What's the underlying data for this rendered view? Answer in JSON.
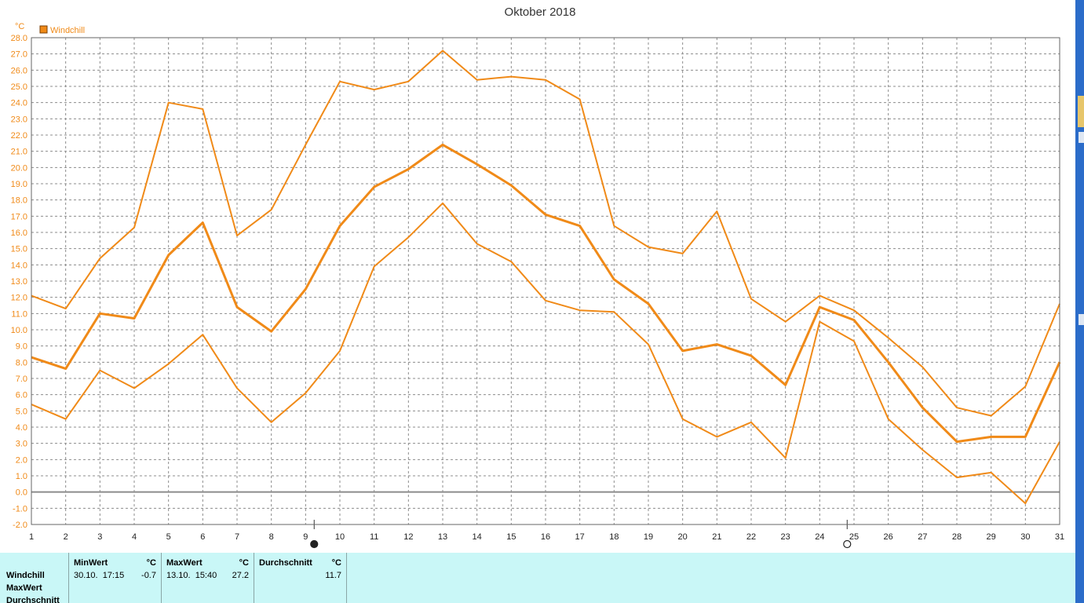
{
  "chart_data": {
    "type": "line",
    "title": "Oktober 2018",
    "ylabel": "°C",
    "legend": "Windchill",
    "legend_position": "top-left",
    "grid": true,
    "ylim": [
      -2,
      28
    ],
    "yticks": [
      "28.0",
      "27.0",
      "26.0",
      "25.0",
      "24.0",
      "23.0",
      "22.0",
      "21.0",
      "20.0",
      "19.0",
      "18.0",
      "17.0",
      "16.0",
      "15.0",
      "14.0",
      "13.0",
      "12.0",
      "11.0",
      "10.0",
      "9.0",
      "8.0",
      "7.0",
      "6.0",
      "5.0",
      "4.0",
      "3.0",
      "2.0",
      "1.0",
      "0.0",
      "-1.0",
      "-2.0"
    ],
    "x": [
      "1",
      "2",
      "3",
      "4",
      "5",
      "6",
      "7",
      "8",
      "9",
      "10",
      "11",
      "12",
      "13",
      "14",
      "15",
      "16",
      "17",
      "18",
      "19",
      "20",
      "21",
      "22",
      "23",
      "24",
      "25",
      "26",
      "27",
      "28",
      "29",
      "30",
      "31"
    ],
    "series": [
      {
        "values": [
          12.1,
          11.3,
          14.4,
          16.3,
          24.0,
          23.6,
          15.8,
          17.4,
          21.4,
          25.3,
          24.8,
          25.3,
          27.2,
          25.4,
          25.6,
          25.4,
          24.2,
          16.4,
          15.1,
          14.7,
          17.3,
          11.9,
          10.5,
          12.1,
          11.2,
          9.5,
          7.7,
          5.2,
          4.7,
          6.5,
          11.6
        ]
      },
      {
        "values": [
          8.3,
          7.6,
          11.0,
          10.7,
          14.6,
          16.6,
          11.4,
          9.9,
          12.5,
          16.4,
          18.8,
          19.9,
          21.4,
          20.2,
          18.9,
          17.1,
          16.4,
          13.1,
          11.6,
          8.7,
          9.1,
          8.4,
          6.6,
          11.4,
          10.6,
          8.0,
          5.2,
          3.1,
          3.4,
          3.4,
          8.0
        ]
      },
      {
        "values": [
          5.4,
          4.5,
          7.5,
          6.4,
          7.9,
          9.7,
          6.4,
          4.3,
          6.1,
          8.7,
          13.9,
          15.7,
          17.8,
          15.3,
          14.2,
          11.8,
          11.2,
          11.1,
          9.1,
          4.5,
          3.4,
          4.3,
          2.1,
          10.5,
          9.3,
          4.5,
          2.6,
          0.9,
          1.2,
          -0.7,
          3.1
        ]
      }
    ],
    "moon_phases": [
      {
        "x": 9.25,
        "phase": "full"
      },
      {
        "x": 24.8,
        "phase": "new"
      }
    ]
  },
  "colors": {
    "line": "#f08a18",
    "axis_text": "#f08a18",
    "grid": "#8c8c8c",
    "zero_line": "#8c8c8c",
    "stats_bg": "#c9f7f7"
  },
  "stats": {
    "row_labels": [
      "Windchill",
      "MaxWert",
      "Durchschnitt"
    ],
    "columns": [
      {
        "header": "MinWert",
        "unit": "°C",
        "when": "30.10.  17:15",
        "value": "-0.7"
      },
      {
        "header": "MaxWert",
        "unit": "°C",
        "when": "13.10.  15:40",
        "value": "27.2"
      },
      {
        "header": "Durchschnitt",
        "unit": "°C",
        "when": "",
        "value": "11.7"
      }
    ]
  }
}
